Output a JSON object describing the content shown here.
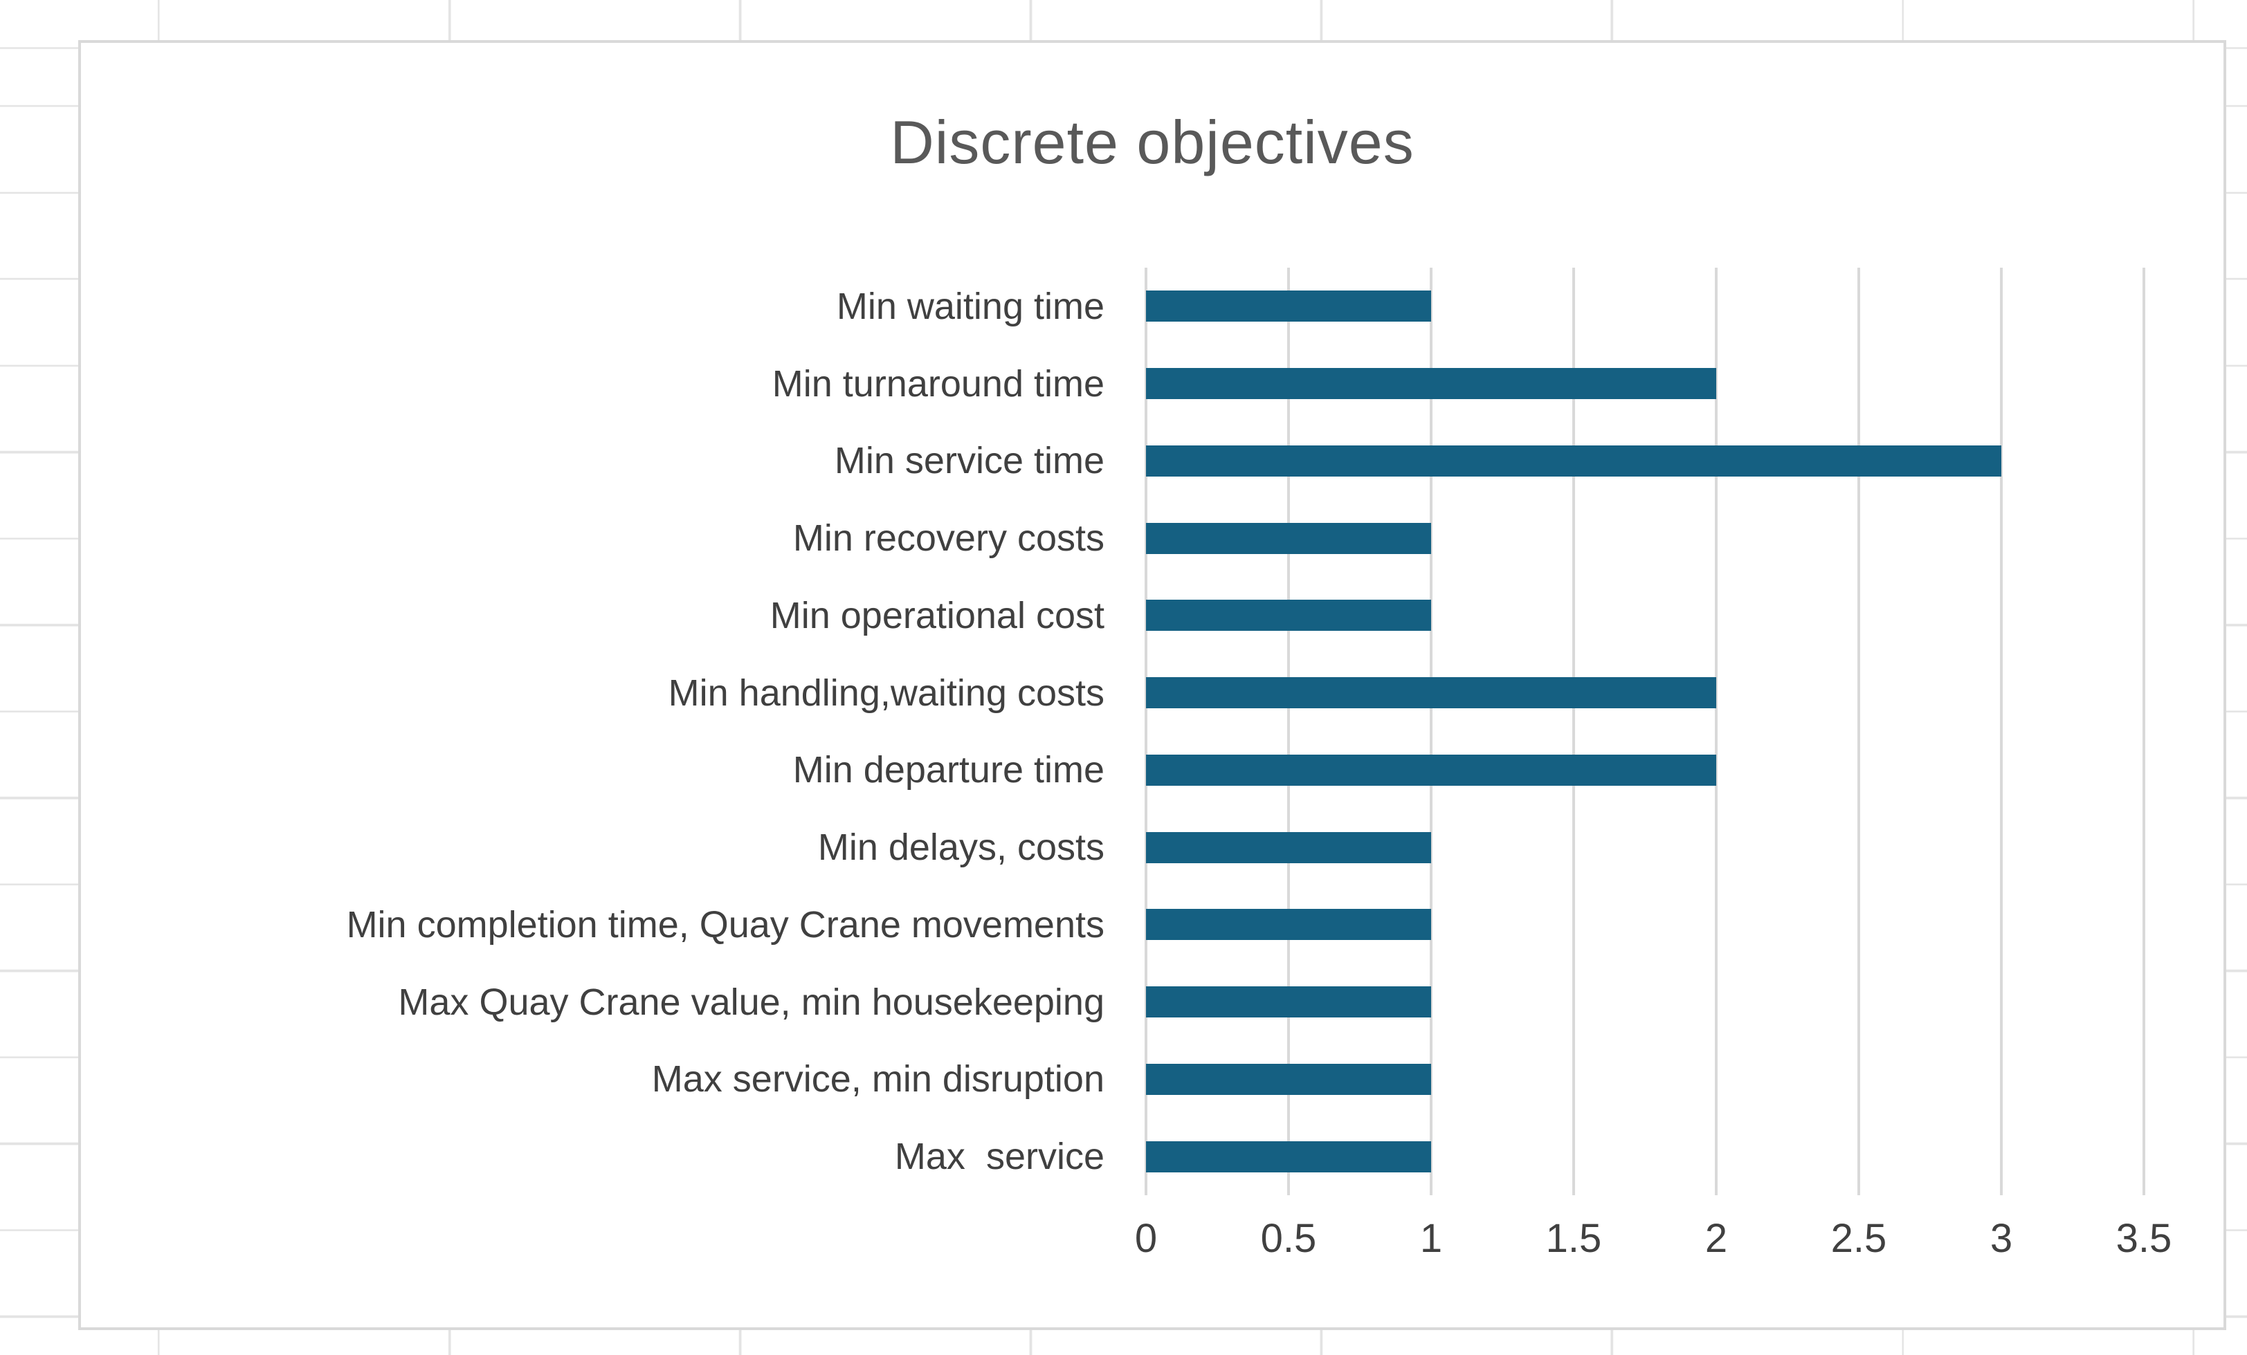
{
  "chart_data": {
    "type": "bar",
    "orientation": "horizontal",
    "title": "Discrete objectives",
    "categories": [
      "Min waiting time",
      "Min turnaround time",
      "Min service time",
      "Min recovery costs",
      "Min operational cost",
      "Min handling,waiting costs",
      "Min departure time",
      "Min delays, costs",
      "Min completion time, Quay Crane movements",
      "Max Quay Crane value, min housekeeping",
      "Max service, min disruption",
      "Max  service"
    ],
    "values": [
      1,
      2,
      3,
      1,
      1,
      2,
      2,
      1,
      1,
      1,
      1,
      1
    ],
    "xlabel": "",
    "ylabel": "",
    "xlim": [
      0,
      3.5
    ],
    "x_tick_values": [
      0,
      0.5,
      1,
      1.5,
      2,
      2.5,
      3,
      3.5
    ],
    "x_tick_labels": [
      "0",
      "0.5",
      "1",
      "1.5",
      "2",
      "2.5",
      "3",
      "3.5"
    ],
    "grid": true,
    "legend": false,
    "colors": {
      "bar": "#156082",
      "gridline": "#D9D9D9",
      "chart_border": "#D9D9D9",
      "title_text": "#595959",
      "axis_text": "#404040",
      "worksheet_gridline": "#E3E3E3",
      "background": "#FFFFFF"
    }
  }
}
